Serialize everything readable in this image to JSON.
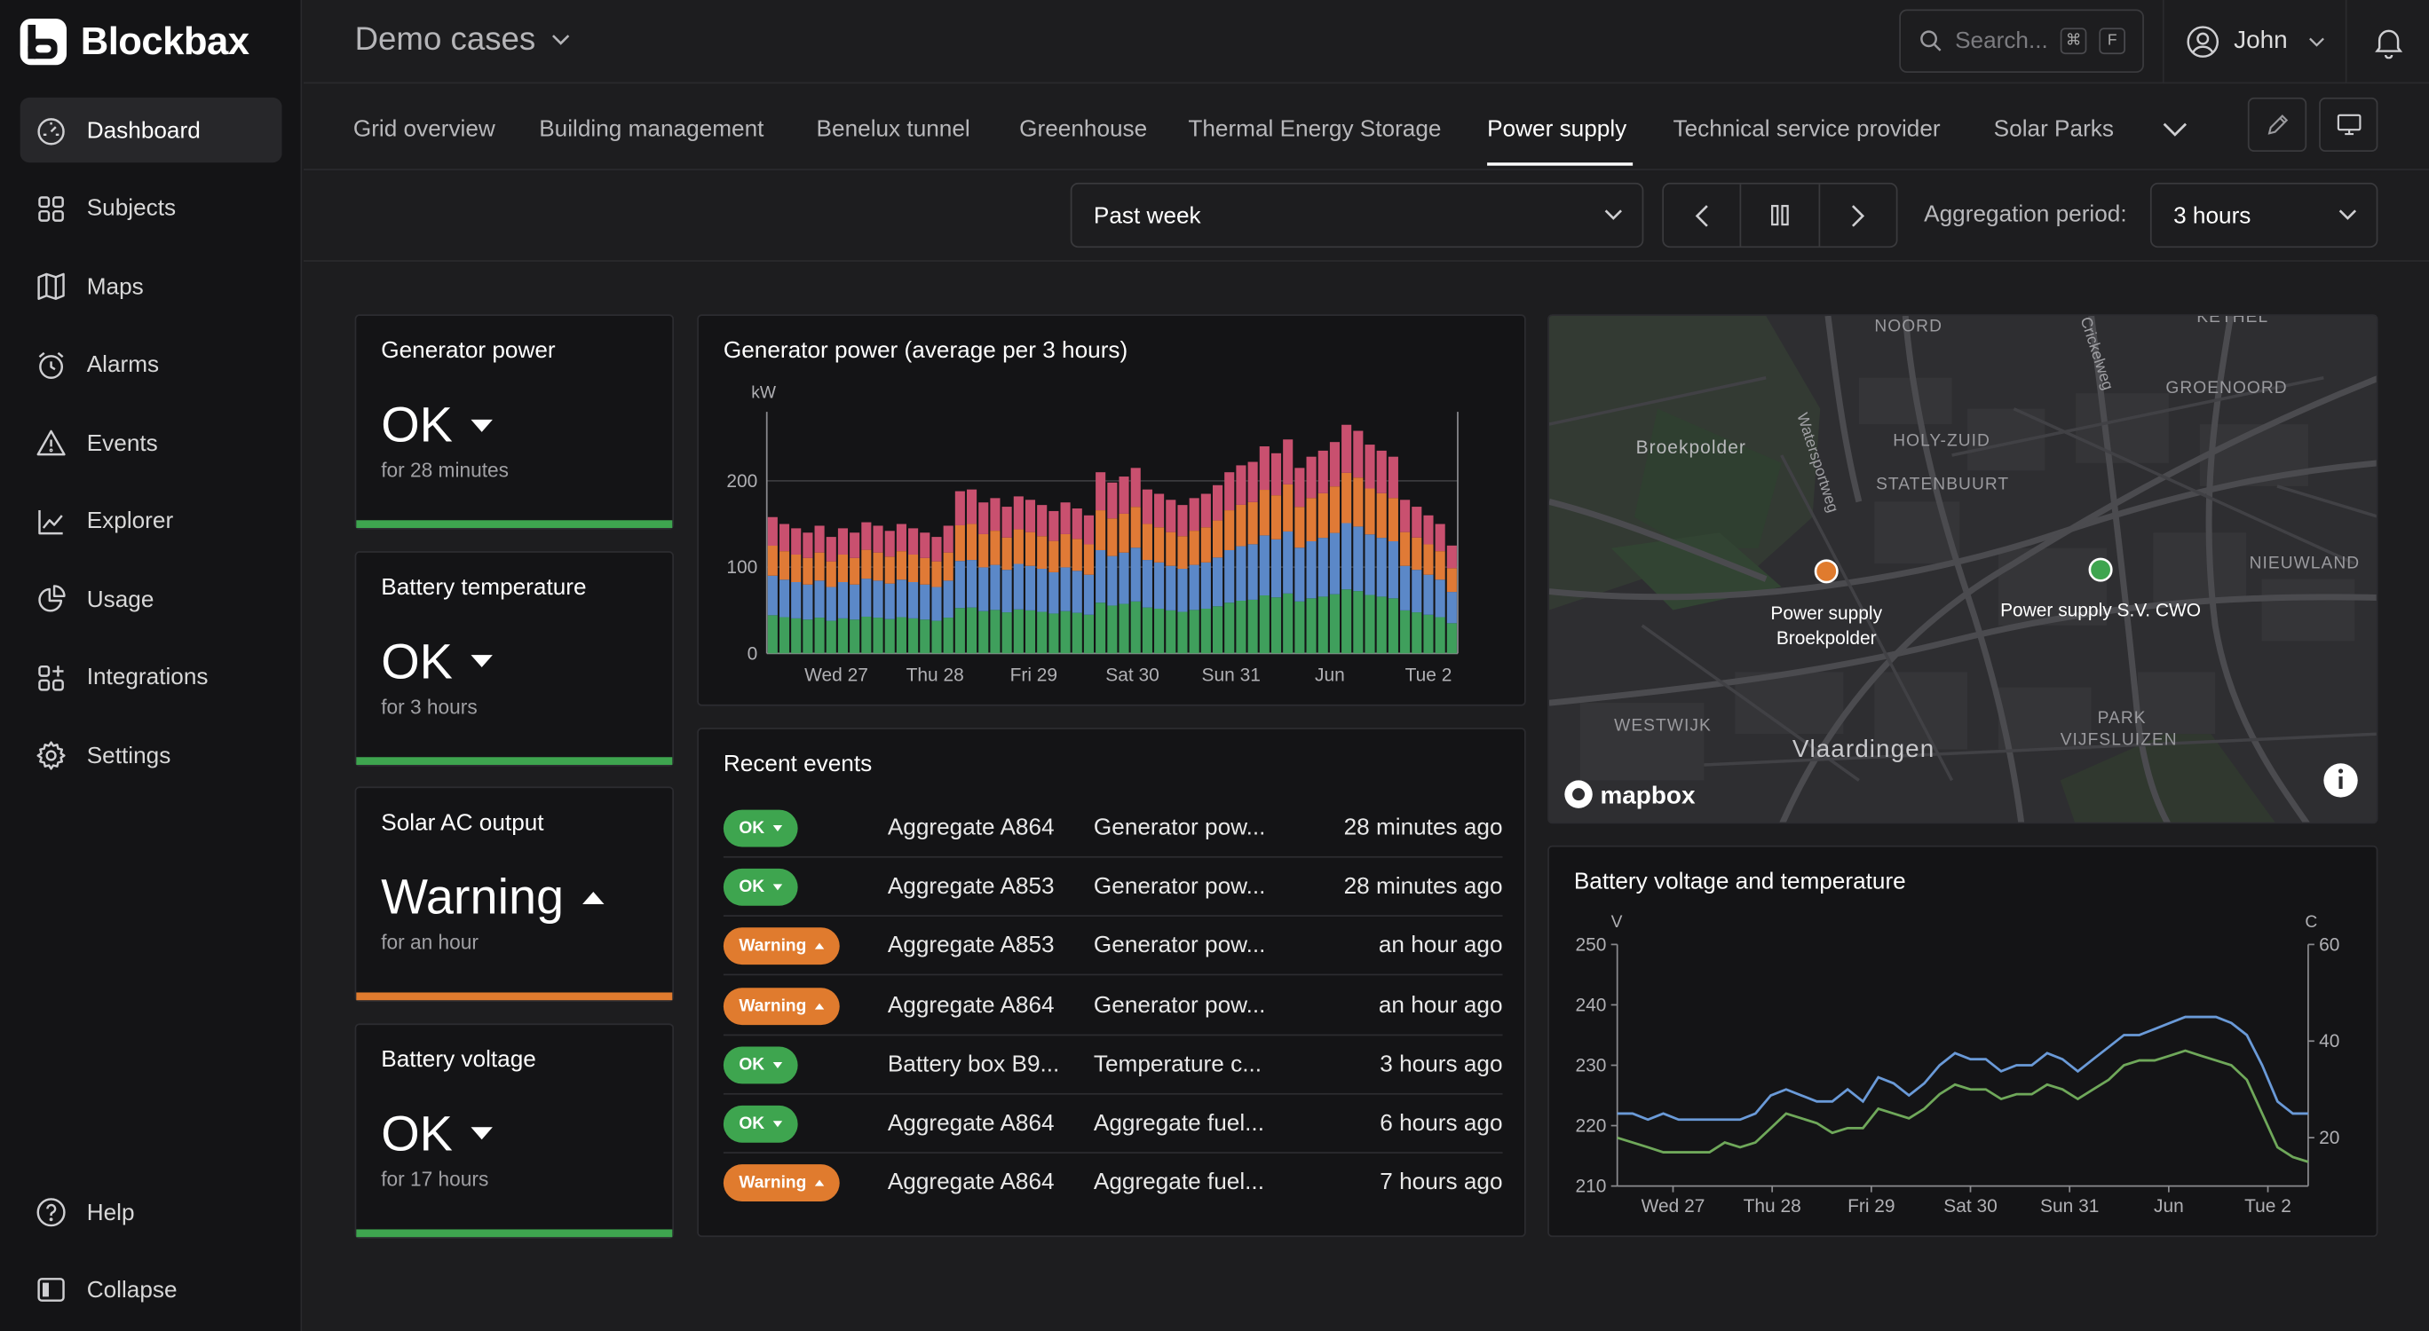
{
  "app": {
    "name": "Blockbax"
  },
  "sidebar": {
    "items": [
      {
        "label": "Dashboard",
        "icon": "dashboard-icon",
        "active": true
      },
      {
        "label": "Subjects",
        "icon": "subjects-grid-icon"
      },
      {
        "label": "Maps",
        "icon": "map-icon"
      },
      {
        "label": "Alarms",
        "icon": "alarm-clock-icon"
      },
      {
        "label": "Events",
        "icon": "warning-triangle-icon"
      },
      {
        "label": "Explorer",
        "icon": "line-chart-icon"
      },
      {
        "label": "Usage",
        "icon": "pie-chart-icon"
      },
      {
        "label": "Integrations",
        "icon": "integrations-icon"
      },
      {
        "label": "Settings",
        "icon": "gear-icon"
      }
    ],
    "help": "Help",
    "collapse": "Collapse"
  },
  "header": {
    "project": "Demo cases",
    "search_placeholder": "Search...",
    "shortcut_cmd": "⌘",
    "shortcut_key": "F",
    "user": "John"
  },
  "tabs": [
    {
      "label": "Grid overview"
    },
    {
      "label": "Building management"
    },
    {
      "label": "Benelux tunnel"
    },
    {
      "label": "Greenhouse"
    },
    {
      "label": "Thermal Energy Storage"
    },
    {
      "label": "Power supply",
      "active": true
    },
    {
      "label": "Technical service provider"
    },
    {
      "label": "Solar Parks"
    }
  ],
  "controls": {
    "period": "Past week",
    "aggregation_label": "Aggregation period:",
    "aggregation_value": "3 hours"
  },
  "status_cards": [
    {
      "title": "Generator power",
      "status": "OK",
      "since": "for 28 minutes",
      "level": "ok"
    },
    {
      "title": "Battery temperature",
      "status": "OK",
      "since": "for 3 hours",
      "level": "ok"
    },
    {
      "title": "Solar AC output",
      "status": "Warning",
      "since": "for an hour",
      "level": "warning"
    },
    {
      "title": "Battery voltage",
      "status": "OK",
      "since": "for 17 hours",
      "level": "ok"
    }
  ],
  "colors": {
    "ok": "#3ea54f",
    "warning": "#e07b2e",
    "series_green": "#3f9f5c",
    "series_blue": "#5b88c8",
    "series_orange": "#e07a36",
    "series_pink": "#c9506f"
  },
  "generator_chart": {
    "title": "Generator power (average per 3 hours)",
    "chart_data": {
      "type": "bar",
      "stacked": true,
      "ylabel": "kW",
      "ylim": [
        0,
        280
      ],
      "yticks": [
        0,
        100,
        200
      ],
      "xticks": [
        "Wed 27",
        "Thu 28",
        "Fri 29",
        "Sat 30",
        "Sun 31",
        "Jun",
        "Tue 2"
      ],
      "totals": [
        158,
        150,
        145,
        140,
        148,
        135,
        145,
        140,
        152,
        148,
        142,
        150,
        145,
        140,
        135,
        148,
        188,
        190,
        175,
        180,
        170,
        182,
        178,
        172,
        165,
        175,
        168,
        160,
        210,
        198,
        205,
        215,
        190,
        185,
        178,
        172,
        180,
        185,
        195,
        210,
        218,
        222,
        240,
        232,
        248,
        215,
        228,
        235,
        245,
        265,
        258,
        242,
        235,
        228,
        178,
        170,
        160,
        150,
        125
      ],
      "series": [
        {
          "name": "green",
          "share": 0.28
        },
        {
          "name": "blue",
          "share": 0.29
        },
        {
          "name": "orange",
          "share": 0.22
        },
        {
          "name": "pink",
          "share": 0.21
        }
      ]
    }
  },
  "events": {
    "title": "Recent events",
    "rows": [
      {
        "status": "OK",
        "level": "ok",
        "subject": "Aggregate A864",
        "metric": "Generator pow...",
        "time": "28 minutes ago"
      },
      {
        "status": "OK",
        "level": "ok",
        "subject": "Aggregate A853",
        "metric": "Generator pow...",
        "time": "28 minutes ago"
      },
      {
        "status": "Warning",
        "level": "warning",
        "subject": "Aggregate A853",
        "metric": "Generator pow...",
        "time": "an hour ago"
      },
      {
        "status": "Warning",
        "level": "warning",
        "subject": "Aggregate A864",
        "metric": "Generator pow...",
        "time": "an hour ago"
      },
      {
        "status": "OK",
        "level": "ok",
        "subject": "Battery box B9...",
        "metric": "Temperature c...",
        "time": "3 hours ago"
      },
      {
        "status": "OK",
        "level": "ok",
        "subject": "Aggregate A864",
        "metric": "Aggregate fuel...",
        "time": "6 hours ago"
      },
      {
        "status": "Warning",
        "level": "warning",
        "subject": "Aggregate A864",
        "metric": "Aggregate fuel...",
        "time": "7 hours ago"
      }
    ]
  },
  "map": {
    "labels": [
      "NOORD",
      "KETHEL",
      "GROENOORD",
      "Broekpolder",
      "HOLY-ZUID",
      "STATENBUURT",
      "NIEUWLAND",
      "WESTWIJK",
      "Vlaardingen",
      "PARK",
      "VIJFSLUIZEN",
      "Watersportweg",
      "Crickelweg"
    ],
    "markers": [
      {
        "name_line1": "Power supply",
        "name_line2": "Broekpolder",
        "color": "#e07b2e"
      },
      {
        "name_line1": "Power supply S.V. CWO",
        "color": "#3ea54f"
      }
    ],
    "attribution": "mapbox"
  },
  "battery_chart": {
    "title": "Battery voltage and temperature",
    "chart_data": {
      "type": "line",
      "ylabel_left": "V",
      "ylabel_right": "C",
      "ylim_left": [
        210,
        250
      ],
      "yticks_left": [
        210,
        220,
        230,
        240,
        250
      ],
      "ylim_right": [
        10,
        60
      ],
      "yticks_right": [
        20,
        40,
        60
      ],
      "xticks": [
        "Wed 27",
        "Thu 28",
        "Fri 29",
        "Sat 30",
        "Sun 31",
        "Jun",
        "Tue 2"
      ],
      "series": [
        {
          "name": "voltage",
          "axis": "left",
          "color": "#6a9ad8",
          "values": [
            222,
            222,
            221,
            222,
            221,
            221,
            221,
            221,
            221,
            222,
            225,
            226,
            225,
            224,
            224,
            226,
            224,
            228,
            227,
            225,
            227,
            230,
            232,
            231,
            231,
            229,
            230,
            230,
            232,
            231,
            229,
            231,
            233,
            235,
            235,
            236,
            237,
            238,
            238,
            238,
            237,
            235,
            230,
            224,
            222,
            222
          ]
        },
        {
          "name": "temperature",
          "axis": "right",
          "color": "#6fa85a",
          "values": [
            20,
            19,
            18,
            17,
            17,
            17,
            17,
            19,
            18,
            19,
            22,
            25,
            24,
            23,
            21,
            22,
            22,
            26,
            25,
            24,
            26,
            29,
            31,
            30,
            30,
            28,
            29,
            29,
            31,
            30,
            28,
            30,
            32,
            35,
            36,
            36,
            37,
            38,
            37,
            36,
            35,
            32,
            25,
            18,
            16,
            15
          ]
        }
      ]
    }
  }
}
